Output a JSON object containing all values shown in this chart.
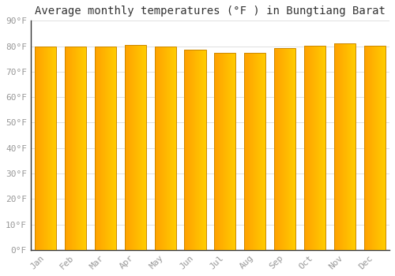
{
  "months": [
    "Jan",
    "Feb",
    "Mar",
    "Apr",
    "May",
    "Jun",
    "Jul",
    "Aug",
    "Sep",
    "Oct",
    "Nov",
    "Dec"
  ],
  "values": [
    80.0,
    80.0,
    79.8,
    80.4,
    79.9,
    78.6,
    77.5,
    77.5,
    79.2,
    80.1,
    81.0,
    80.1
  ],
  "bar_color_left": "#FFA500",
  "bar_color_right": "#FFD000",
  "bar_edge_color": "#CC8800",
  "background_color": "#FFFFFF",
  "plot_bg_color": "#FFFFFF",
  "grid_color": "#E0E0E0",
  "title": "Average monthly temperatures (°F ) in Bungtiang Barat",
  "title_fontsize": 10,
  "tick_label_color": "#999999",
  "ylabel_ticks": [
    0,
    10,
    20,
    30,
    40,
    50,
    60,
    70,
    80,
    90
  ],
  "ylim": [
    0,
    90
  ],
  "tick_fontsize": 8,
  "font_family": "monospace"
}
